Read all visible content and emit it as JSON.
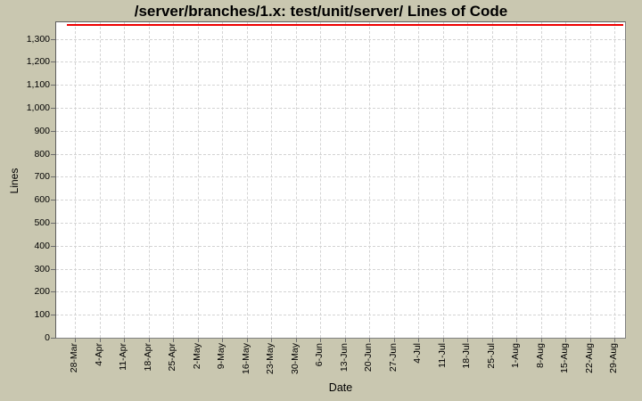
{
  "title": "/server/branches/1.x: test/unit/server/ Lines of Code",
  "colors": {
    "background": "#c9c7b0",
    "plot_background": "#ffffff",
    "gridline": "#d4d4d4",
    "plot_border": "#808080",
    "series_line": "#ee0000",
    "tick_mark": "#6e6e6e",
    "text": "#000000"
  },
  "chart_data": {
    "type": "line",
    "title": "/server/branches/1.x: test/unit/server/ Lines of Code",
    "xlabel": "Date",
    "ylabel": "Lines",
    "x_tick_labels": [
      "28-Mar",
      "4-Apr",
      "11-Apr",
      "18-Apr",
      "25-Apr",
      "2-May",
      "9-May",
      "16-May",
      "23-May",
      "30-May",
      "6-Jun",
      "13-Jun",
      "20-Jun",
      "27-Jun",
      "4-Jul",
      "11-Jul",
      "18-Jul",
      "25-Jul",
      "1-Aug",
      "8-Aug",
      "15-Aug",
      "22-Aug",
      "29-Aug"
    ],
    "y_tick_labels": [
      "0",
      "100",
      "200",
      "300",
      "400",
      "500",
      "600",
      "700",
      "800",
      "900",
      "1,000",
      "1,100",
      "1,200",
      "1,300"
    ],
    "y_tick_step": 100,
    "ylim": [
      0,
      1372
    ],
    "grid": true,
    "legend_position": "none",
    "series": [
      {
        "name": "Lines of Code",
        "color": "#ee0000",
        "shape": "constant horizontal line spanning the full visible date range",
        "value": 1360,
        "x_start_frac": 0.019,
        "x_end_frac": 0.997
      }
    ]
  }
}
